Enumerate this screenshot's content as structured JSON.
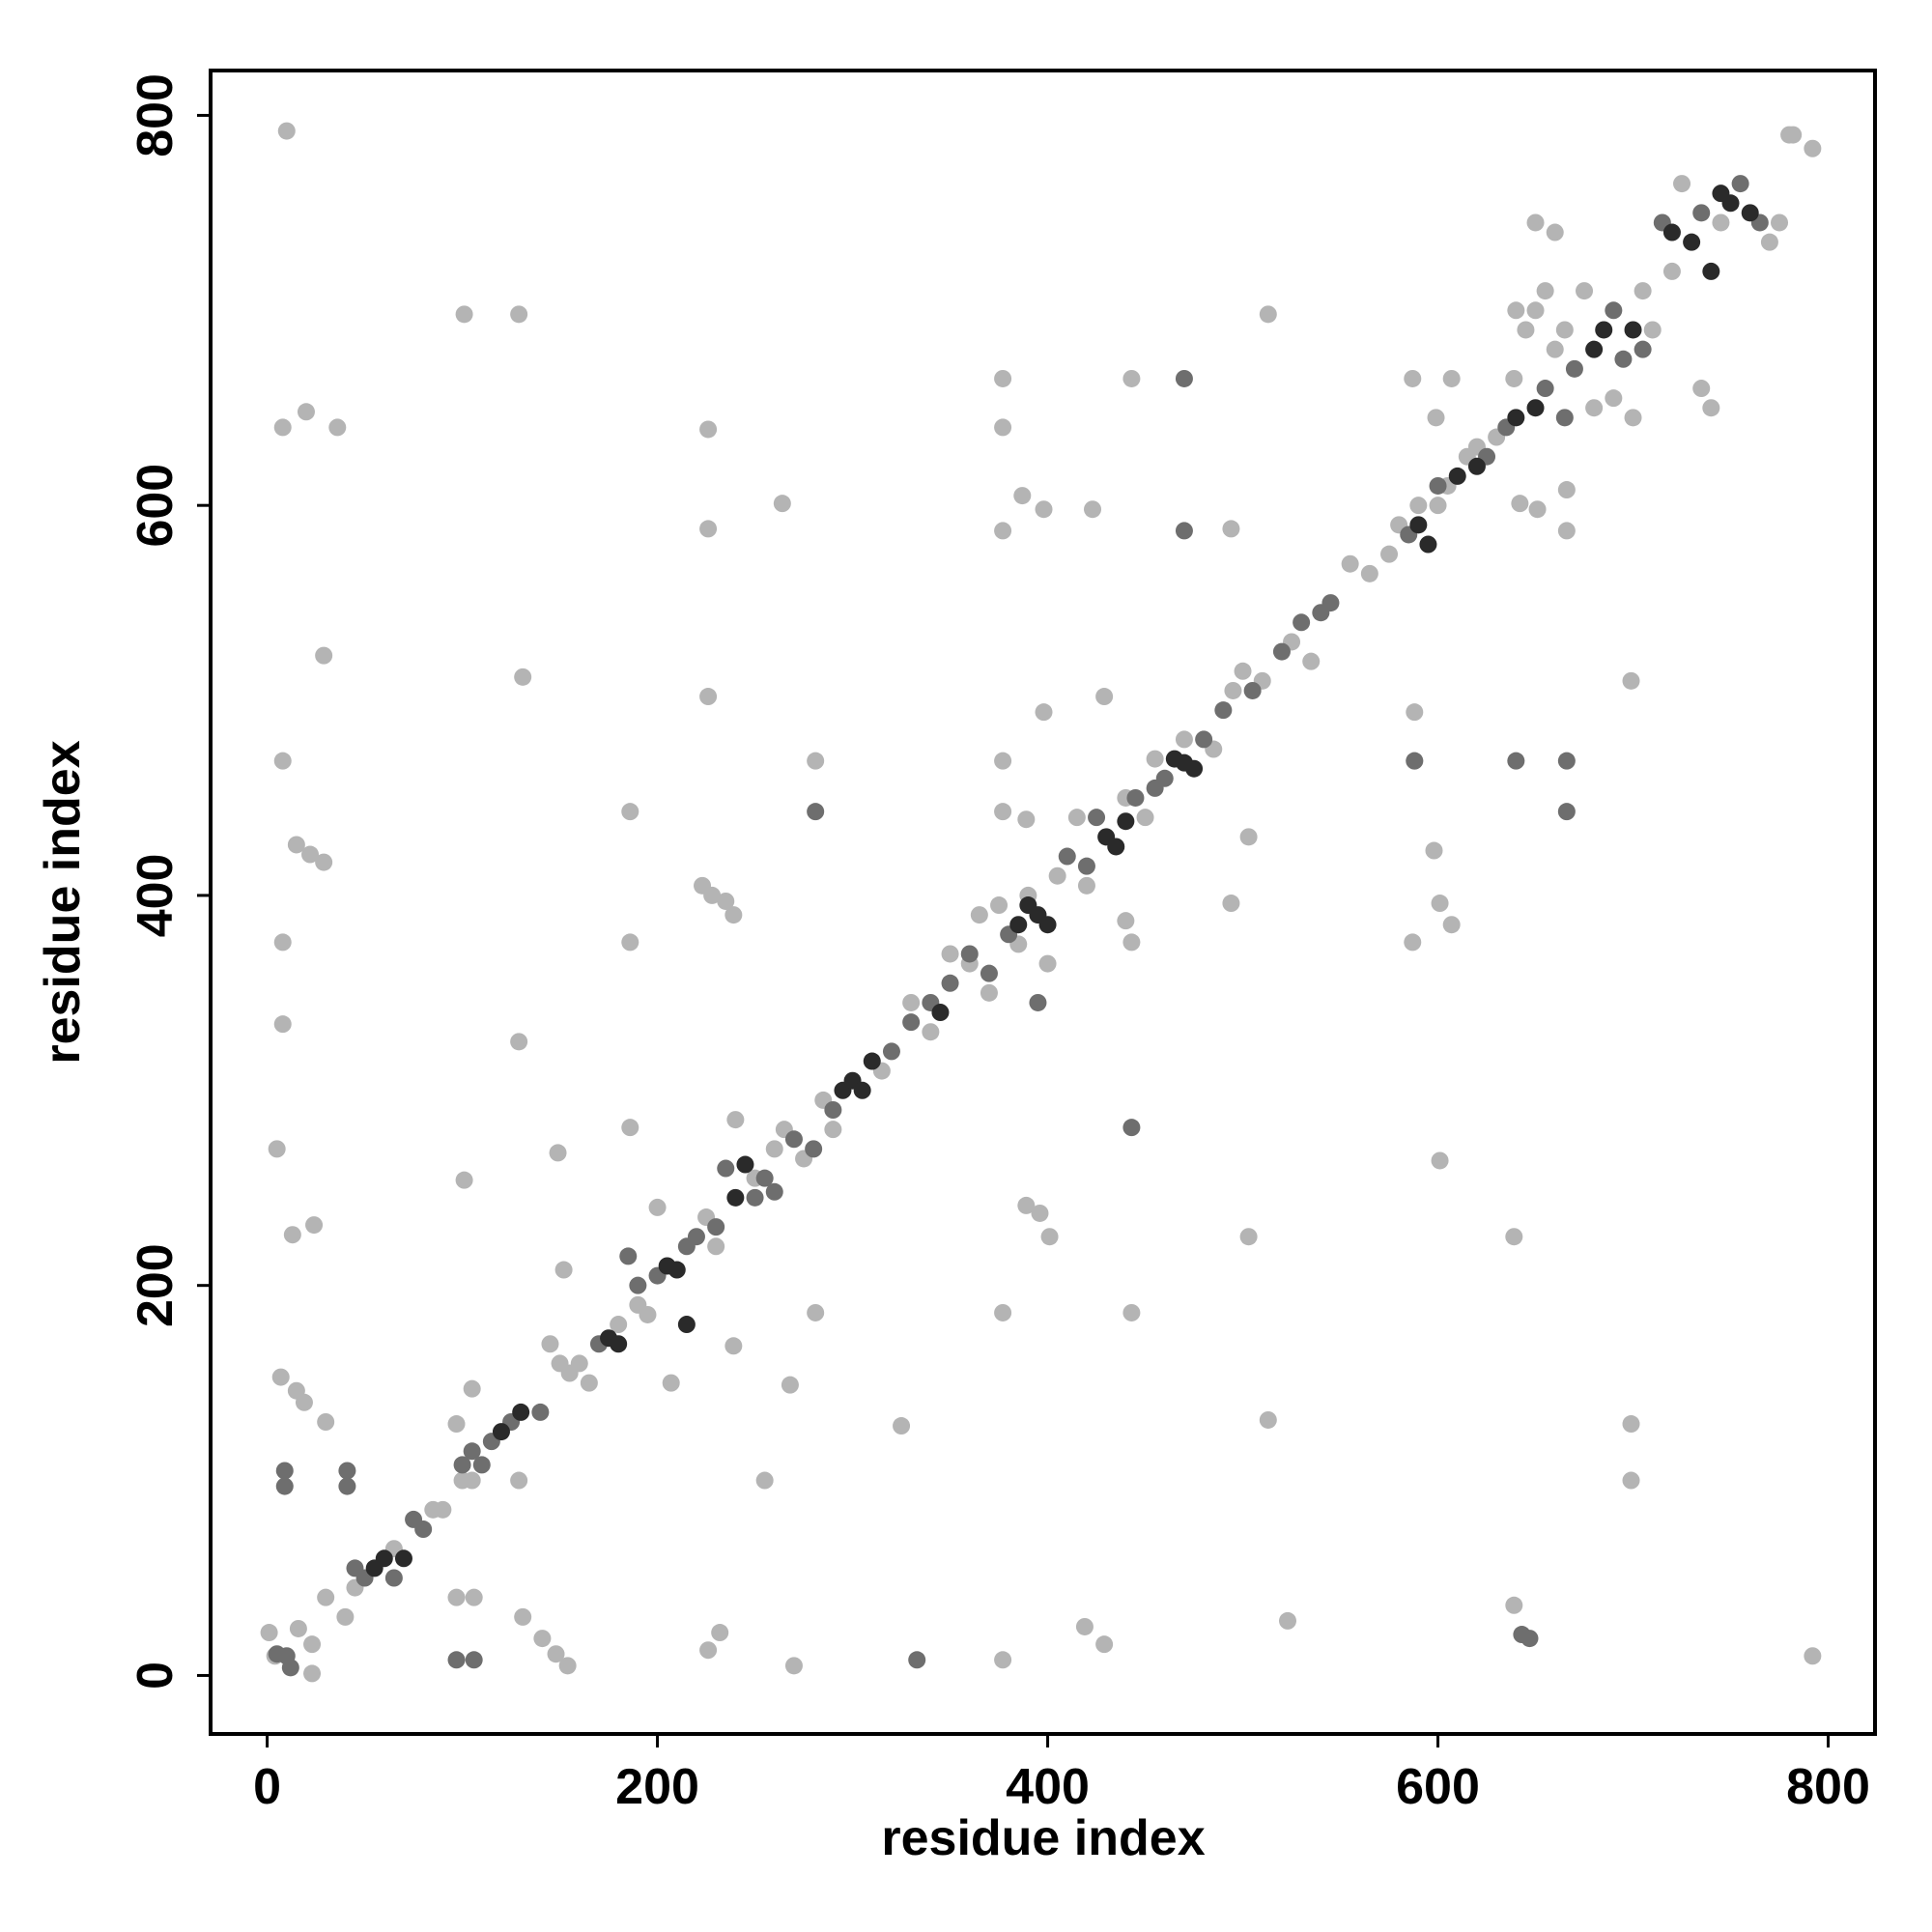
{
  "chart_data": {
    "type": "scatter",
    "x_label": "residue index",
    "y_label": "residue index",
    "xlim": [
      -29,
      824
    ],
    "ylim": [
      -30,
      823
    ],
    "xticks": [
      0,
      200,
      400,
      600,
      800
    ],
    "yticks": [
      0,
      200,
      400,
      600,
      800
    ],
    "series": [
      {
        "color": "#b4b4b4",
        "x": [
          10,
          8,
          20,
          36,
          29,
          8,
          15,
          22,
          29,
          8,
          8,
          5,
          13,
          24,
          7,
          15,
          19,
          30,
          1,
          16,
          23,
          23,
          4,
          101,
          129,
          131,
          129,
          101,
          149,
          152,
          97,
          105,
          129,
          97,
          106,
          131,
          141,
          148,
          154,
          186,
          186,
          186,
          226,
          226,
          226,
          223,
          228,
          235,
          239,
          207,
          232,
          226,
          239,
          255,
          264,
          281,
          281,
          268,
          270,
          325,
          377,
          377,
          377,
          377,
          377,
          387,
          398,
          398,
          389,
          377,
          389,
          396,
          401,
          377,
          423,
          429,
          443,
          440,
          443,
          443,
          419,
          429,
          494,
          494,
          503,
          503,
          513,
          513,
          523,
          587,
          588,
          588,
          587,
          598,
          601,
          607,
          601,
          607,
          639,
          639,
          639,
          666,
          666,
          699,
          699,
          699,
          792,
          782,
          792,
          651,
          642,
          599,
          30,
          40,
          45,
          65,
          85,
          90,
          100,
          105,
          145,
          150,
          155,
          160,
          165,
          180,
          190,
          195,
          200,
          225,
          230,
          240,
          250,
          260,
          265,
          275,
          285,
          290,
          315,
          330,
          340,
          350,
          360,
          365,
          370,
          375,
          385,
          390,
          400,
          405,
          415,
          420,
          440,
          450,
          455,
          470,
          485,
          495,
          500,
          510,
          525,
          535,
          555,
          565,
          575,
          580,
          590,
          600,
          605,
          615,
          630,
          650,
          655,
          660,
          665,
          675,
          680,
          690,
          700,
          705,
          710,
          720,
          725,
          735,
          740,
          745,
          770,
          775,
          780,
          660,
          650,
          640,
          645,
          620
        ],
        "values": [
          792,
          640,
          648,
          640,
          523,
          469,
          426,
          421,
          417,
          376,
          334,
          270,
          226,
          231,
          153,
          146,
          140,
          130,
          22,
          24,
          16,
          1,
          10,
          698,
          698,
          512,
          325,
          254,
          268,
          208,
          129,
          147,
          100,
          40,
          40,
          30,
          19,
          11,
          5,
          443,
          376,
          281,
          639,
          588,
          502,
          405,
          400,
          397,
          390,
          150,
          22,
          13,
          169,
          100,
          601,
          469,
          186,
          149,
          5,
          128,
          665,
          640,
          587,
          469,
          443,
          605,
          598,
          494,
          439,
          186,
          241,
          237,
          225,
          8,
          598,
          502,
          665,
          387,
          376,
          186,
          25,
          16,
          588,
          396,
          430,
          225,
          698,
          131,
          28,
          665,
          494,
          469,
          376,
          423,
          396,
          385,
          264,
          665,
          665,
          36,
          225,
          608,
          587,
          510,
          129,
          100,
          10,
          790,
          783,
          598,
          601,
          645,
          40,
          30,
          45,
          65,
          85,
          85,
          100,
          100,
          170,
          160,
          155,
          160,
          150,
          180,
          190,
          185,
          240,
          235,
          220,
          285,
          255,
          270,
          280,
          265,
          295,
          280,
          310,
          345,
          330,
          370,
          365,
          390,
          350,
          395,
          375,
          400,
          365,
          410,
          440,
          405,
          450,
          440,
          470,
          480,
          475,
          505,
          515,
          510,
          530,
          520,
          570,
          565,
          575,
          590,
          600,
          600,
          610,
          625,
          635,
          700,
          710,
          680,
          690,
          710,
          650,
          655,
          645,
          710,
          690,
          720,
          765,
          660,
          650,
          745,
          735,
          745,
          790,
          740,
          745,
          700,
          690,
          630
        ]
      },
      {
        "color": "#6e6e6e",
        "x": [
          9,
          9,
          41,
          41,
          97,
          106,
          5,
          12,
          281,
          443,
          647,
          643,
          333,
          470,
          470,
          588,
          640,
          666,
          666,
          10,
          50,
          45,
          65,
          75,
          80,
          100,
          105,
          110,
          115,
          125,
          140,
          170,
          185,
          190,
          200,
          215,
          220,
          230,
          235,
          250,
          255,
          260,
          270,
          280,
          290,
          320,
          330,
          340,
          350,
          360,
          370,
          380,
          395,
          410,
          420,
          425,
          445,
          455,
          460,
          480,
          490,
          505,
          520,
          530,
          540,
          545,
          585,
          600,
          625,
          635,
          655,
          665,
          670,
          690,
          695,
          705,
          715,
          735,
          755,
          765
        ],
        "values": [
          105,
          97,
          105,
          97,
          8,
          8,
          11,
          4,
          443,
          281,
          19,
          21,
          8,
          665,
          587,
          469,
          469,
          469,
          443,
          10,
          50,
          55,
          50,
          80,
          75,
          108,
          115,
          108,
          120,
          130,
          135,
          170,
          215,
          200,
          205,
          220,
          225,
          230,
          260,
          245,
          255,
          248,
          275,
          270,
          290,
          320,
          335,
          345,
          355,
          370,
          360,
          380,
          345,
          420,
          415,
          440,
          450,
          455,
          460,
          480,
          495,
          505,
          525,
          540,
          545,
          550,
          585,
          610,
          625,
          640,
          660,
          645,
          670,
          700,
          675,
          680,
          745,
          750,
          765,
          745
        ]
      },
      {
        "color": "#2a2a2a",
        "x": [
          55,
          60,
          70,
          120,
          130,
          175,
          180,
          205,
          210,
          215,
          240,
          245,
          295,
          300,
          305,
          310,
          345,
          385,
          390,
          395,
          400,
          430,
          435,
          440,
          465,
          470,
          475,
          590,
          595,
          610,
          620,
          640,
          650,
          680,
          685,
          700,
          720,
          730,
          745,
          750,
          760,
          740
        ],
        "values": [
          55,
          60,
          60,
          125,
          135,
          173,
          170,
          210,
          208,
          180,
          245,
          262,
          300,
          305,
          300,
          315,
          340,
          385,
          395,
          390,
          385,
          430,
          425,
          438,
          470,
          468,
          465,
          590,
          580,
          615,
          620,
          645,
          650,
          680,
          690,
          690,
          740,
          735,
          760,
          755,
          750,
          720
        ]
      }
    ]
  }
}
